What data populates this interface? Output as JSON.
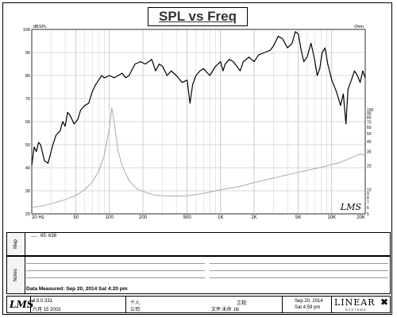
{
  "chart_data": {
    "type": "line",
    "title": "SPL vs Freq",
    "left_unit": "dBSPL",
    "right_unit": "Ohm",
    "x_scale": "log",
    "xlim": [
      20,
      20000
    ],
    "ylim_left": [
      20,
      100
    ],
    "ylim_right": [
      5,
      1000
    ],
    "x_ticks": [
      {
        "v": 20,
        "label": "20 Hz"
      },
      {
        "v": 50,
        "label": "50"
      },
      {
        "v": 100,
        "label": "100"
      },
      {
        "v": 200,
        "label": "200"
      },
      {
        "v": 500,
        "label": "500"
      },
      {
        "v": 1000,
        "label": "1K"
      },
      {
        "v": 2000,
        "label": "2K"
      },
      {
        "v": 5000,
        "label": "5K"
      },
      {
        "v": 10000,
        "label": "10K"
      },
      {
        "v": 20000,
        "label": "20K"
      }
    ],
    "y_left_ticks": [
      {
        "v": 100,
        "label": "100"
      },
      {
        "v": 90,
        "label": "90"
      },
      {
        "v": 80,
        "label": "80"
      },
      {
        "v": 70,
        "label": "70"
      },
      {
        "v": 60,
        "label": "60"
      },
      {
        "v": 50,
        "label": "50"
      },
      {
        "v": 40,
        "label": "40"
      },
      {
        "v": 30,
        "label": "30"
      },
      {
        "v": 20,
        "label": "20"
      }
    ],
    "y_right_ticks": [
      {
        "v": 100,
        "label": "100"
      },
      {
        "v": 90,
        "label": "90"
      },
      {
        "v": 80,
        "label": "80"
      },
      {
        "v": 70,
        "label": "70"
      },
      {
        "v": 60,
        "label": "60"
      },
      {
        "v": 50,
        "label": "50"
      },
      {
        "v": 40,
        "label": "40"
      },
      {
        "v": 30,
        "label": "30"
      },
      {
        "v": 20,
        "label": "20"
      },
      {
        "v": 10,
        "label": "10"
      },
      {
        "v": 9,
        "label": "9"
      },
      {
        "v": 8,
        "label": "8"
      },
      {
        "v": 7,
        "label": "7"
      },
      {
        "v": 6,
        "label": "6"
      },
      {
        "v": 5,
        "label": "5"
      }
    ],
    "grid": true,
    "series": [
      {
        "axis": "left",
        "color": "#000000",
        "points": [
          [
            20,
            41
          ],
          [
            21,
            49
          ],
          [
            22,
            47
          ],
          [
            23,
            51
          ],
          [
            24,
            50
          ],
          [
            26,
            43
          ],
          [
            28,
            42
          ],
          [
            31,
            50
          ],
          [
            33,
            54
          ],
          [
            36,
            56
          ],
          [
            38,
            60
          ],
          [
            40,
            58
          ],
          [
            42,
            64
          ],
          [
            44,
            63
          ],
          [
            46,
            61
          ],
          [
            48,
            59
          ],
          [
            52,
            61
          ],
          [
            55,
            65
          ],
          [
            60,
            67
          ],
          [
            65,
            68
          ],
          [
            70,
            73
          ],
          [
            75,
            76
          ],
          [
            80,
            78
          ],
          [
            85,
            80
          ],
          [
            90,
            79
          ],
          [
            100,
            80
          ],
          [
            110,
            79
          ],
          [
            120,
            80
          ],
          [
            130,
            81
          ],
          [
            140,
            79
          ],
          [
            150,
            80
          ],
          [
            170,
            85
          ],
          [
            190,
            86
          ],
          [
            210,
            85
          ],
          [
            240,
            87
          ],
          [
            260,
            82
          ],
          [
            280,
            85
          ],
          [
            300,
            84
          ],
          [
            330,
            80
          ],
          [
            360,
            82
          ],
          [
            400,
            80
          ],
          [
            450,
            77
          ],
          [
            500,
            78
          ],
          [
            530,
            68
          ],
          [
            560,
            76
          ],
          [
            600,
            80
          ],
          [
            650,
            82
          ],
          [
            700,
            83
          ],
          [
            800,
            80
          ],
          [
            900,
            84
          ],
          [
            1000,
            86
          ],
          [
            1050,
            82
          ],
          [
            1100,
            85
          ],
          [
            1200,
            87
          ],
          [
            1300,
            86
          ],
          [
            1400,
            84
          ],
          [
            1500,
            82
          ],
          [
            1600,
            86
          ],
          [
            1800,
            88
          ],
          [
            2000,
            86
          ],
          [
            2200,
            89
          ],
          [
            2500,
            90
          ],
          [
            2800,
            91
          ],
          [
            3000,
            93
          ],
          [
            3300,
            97
          ],
          [
            3600,
            96
          ],
          [
            4000,
            92
          ],
          [
            4400,
            94
          ],
          [
            4700,
            99
          ],
          [
            5000,
            98
          ],
          [
            5300,
            91
          ],
          [
            5600,
            86
          ],
          [
            6000,
            88
          ],
          [
            6500,
            94
          ],
          [
            7000,
            87
          ],
          [
            7400,
            80
          ],
          [
            7800,
            83
          ],
          [
            8200,
            90
          ],
          [
            8700,
            92
          ],
          [
            9200,
            85
          ],
          [
            10000,
            78
          ],
          [
            11000,
            73
          ],
          [
            12000,
            67
          ],
          [
            12700,
            72
          ],
          [
            13400,
            59
          ],
          [
            14000,
            74
          ],
          [
            15000,
            78
          ],
          [
            16000,
            82
          ],
          [
            17000,
            80
          ],
          [
            18000,
            77
          ],
          [
            19000,
            82
          ],
          [
            20000,
            79
          ]
        ]
      },
      {
        "axis": "right",
        "color": "#aaaaaa",
        "points": [
          [
            20,
            6
          ],
          [
            25,
            6.3
          ],
          [
            30,
            6.7
          ],
          [
            40,
            7.5
          ],
          [
            50,
            8.5
          ],
          [
            60,
            10
          ],
          [
            70,
            12.5
          ],
          [
            80,
            17
          ],
          [
            90,
            27
          ],
          [
            95,
            40
          ],
          [
            100,
            60
          ],
          [
            105,
            105
          ],
          [
            110,
            70
          ],
          [
            115,
            45
          ],
          [
            120,
            30
          ],
          [
            130,
            20
          ],
          [
            150,
            13
          ],
          [
            180,
            10
          ],
          [
            250,
            8.6
          ],
          [
            350,
            8.3
          ],
          [
            500,
            8.4
          ],
          [
            700,
            9
          ],
          [
            1000,
            10
          ],
          [
            1500,
            11
          ],
          [
            2000,
            12.3
          ],
          [
            3000,
            14
          ],
          [
            5000,
            16.5
          ],
          [
            8000,
            19
          ],
          [
            12000,
            22
          ],
          [
            16000,
            26
          ],
          [
            18000,
            28
          ],
          [
            20000,
            27
          ]
        ]
      }
    ],
    "annotation": "LMS"
  },
  "map": {
    "legend": "65: 638"
  },
  "notes": {
    "measured_label": "Data Measured:  Sep 20, 2014  Sat  4:20 pm"
  },
  "footer": {
    "logo": "LMS",
    "version": "4.5.0.331",
    "version_date": "六月 15 2003",
    "person_label": "个人:",
    "company_label": "公司:",
    "project_label": "工程:",
    "file_label": "文件:未命 .lib",
    "date": "Sep 20, 2014",
    "time": "Sat  4:59 pm",
    "brand": "LINEAR",
    "brand_sub": "S Y S T E M S"
  },
  "side_tabs": {
    "map": "Map",
    "notes": "Notes"
  }
}
